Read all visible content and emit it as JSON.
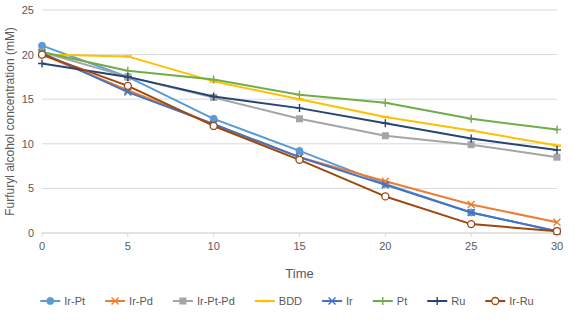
{
  "chart_data": {
    "type": "line",
    "x_label": "Time",
    "y_label": "Furfuryl alcohol concentration (mM)",
    "x": [
      0,
      5,
      10,
      15,
      20,
      25,
      30
    ],
    "xlim": [
      0,
      30
    ],
    "xticks": [
      0,
      5,
      10,
      15,
      20,
      25,
      30
    ],
    "ylim": [
      0,
      25
    ],
    "yticks": [
      0,
      5,
      10,
      15,
      20,
      25
    ],
    "grid": true,
    "legend": "bottom",
    "series": [
      {
        "name": "Ir-Pt",
        "color": "#5b9bd5",
        "marker": "circle",
        "values": [
          21,
          17.5,
          12.8,
          9.2,
          5.5,
          2.3,
          0.2
        ]
      },
      {
        "name": "Ir-Pd",
        "color": "#ed7d31",
        "marker": "x",
        "values": [
          20,
          16,
          12.2,
          8.5,
          5.8,
          3.2,
          1.2
        ]
      },
      {
        "name": "Ir-Pt-Pd",
        "color": "#a5a5a5",
        "marker": "square",
        "values": [
          20.3,
          17.5,
          15.2,
          12.8,
          10.9,
          9.9,
          8.5
        ]
      },
      {
        "name": "BDD",
        "color": "#ffc000",
        "marker": "dash",
        "values": [
          20,
          19.8,
          17,
          15,
          13,
          11.5,
          9.8
        ]
      },
      {
        "name": "Ir",
        "color": "#4472c4",
        "marker": "x",
        "values": [
          20.2,
          15.8,
          12.2,
          8.5,
          5.4,
          2.3,
          0.2
        ]
      },
      {
        "name": "Pt",
        "color": "#70ad47",
        "marker": "plus",
        "values": [
          20.3,
          18.2,
          17.2,
          15.5,
          14.6,
          12.8,
          11.6
        ]
      },
      {
        "name": "Ru",
        "color": "#264478",
        "marker": "plus",
        "values": [
          19,
          17.5,
          15.3,
          14,
          12.3,
          10.6,
          9.3
        ]
      },
      {
        "name": "Ir-Ru",
        "color": "#9e480e",
        "marker": "open-circle",
        "values": [
          20,
          16.5,
          12,
          8.2,
          4.1,
          1,
          0.2
        ]
      }
    ]
  }
}
